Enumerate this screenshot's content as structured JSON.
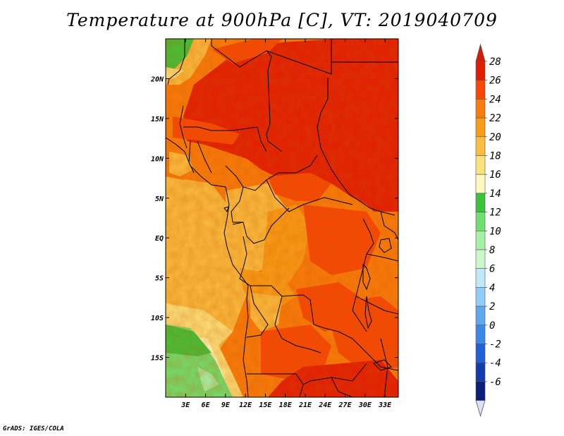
{
  "title": "Temperature at 900hPa [C], VT: 2019040709",
  "credit": "GrADS: IGES/COLA",
  "map": {
    "lon_range": [
      0,
      35
    ],
    "lat_range": [
      -20,
      25
    ],
    "lon_ticks": [
      "3E",
      "6E",
      "9E",
      "12E",
      "15E",
      "18E",
      "21E",
      "24E",
      "27E",
      "30E",
      "33E"
    ],
    "lat_ticks": [
      "20N",
      "15N",
      "10N",
      "5N",
      "EQ",
      "5S",
      "10S",
      "15S"
    ]
  },
  "colorbar": {
    "labels": [
      "28",
      "26",
      "24",
      "22",
      "20",
      "18",
      "16",
      "14",
      "12",
      "10",
      "8",
      "6",
      "4",
      "2",
      "0",
      "-2",
      "-4",
      "-6"
    ],
    "colors": [
      "#e31c04",
      "#f84706",
      "#fa7b0b",
      "#fa9c17",
      "#fbbd3f",
      "#fde27b",
      "#fff9bd",
      "#3bc43b",
      "#6fe06f",
      "#a4f0a4",
      "#ccf7cc",
      "#c1e7fb",
      "#8fcdf8",
      "#5ca9f0",
      "#3a88e9",
      "#1f60d8",
      "#123bb0",
      "#0a1d7a"
    ],
    "top_arrow_color": "#d81c04",
    "bottom_arrow_color": "#dde0f7"
  }
}
